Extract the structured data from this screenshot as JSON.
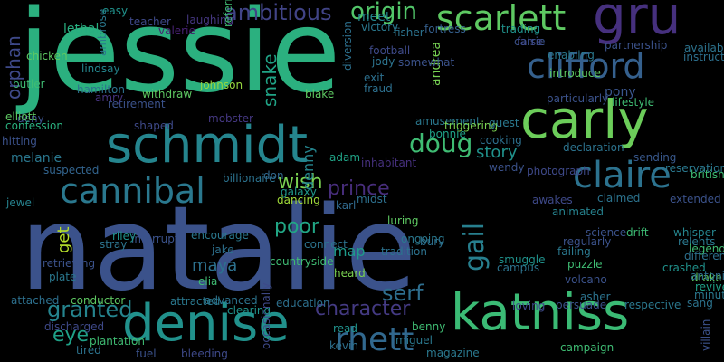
{
  "words": [
    {
      "text": "natalie",
      "color": "#3b528b"
    },
    {
      "text": "jessie",
      "color": "#2bb07f"
    },
    {
      "text": "schmidt",
      "color": "#25858e"
    },
    {
      "text": "gru",
      "color": "#46307e"
    },
    {
      "text": "carly",
      "color": "#6ccd5a"
    },
    {
      "text": "clifford",
      "color": "#35608d"
    },
    {
      "text": "katniss",
      "color": "#3bbb75"
    },
    {
      "text": "denise",
      "color": "#21918c"
    },
    {
      "text": "scarlett",
      "color": "#5ec962"
    },
    {
      "text": "cannibal",
      "color": "#2a788e"
    },
    {
      "text": "claire",
      "color": "#2c728e"
    },
    {
      "text": "doug",
      "color": "#3fbc73"
    },
    {
      "text": "rhett",
      "color": "#31688e"
    },
    {
      "text": "gail",
      "color": "#277f8e"
    },
    {
      "text": "origin",
      "color": "#52c569"
    },
    {
      "text": "ambitious",
      "color": "#414487"
    },
    {
      "text": "orphan",
      "color": "#3e4989"
    },
    {
      "text": "snake",
      "color": "#20a386"
    },
    {
      "text": "granted",
      "color": "#25848e"
    },
    {
      "text": "character",
      "color": "#443a83"
    },
    {
      "text": "prince",
      "color": "#472d7b"
    },
    {
      "text": "poor",
      "color": "#21a685"
    },
    {
      "text": "serf",
      "color": "#2e6e8e"
    },
    {
      "text": "eye",
      "color": "#1fa187"
    },
    {
      "text": "story",
      "color": "#20928c"
    },
    {
      "text": "wish",
      "color": "#7ad151"
    },
    {
      "text": "meet",
      "color": "#24878e"
    },
    {
      "text": "melanie",
      "color": "#2a778e"
    },
    {
      "text": "maya",
      "color": "#2d718e"
    },
    {
      "text": "lethal",
      "color": "#28ae80"
    },
    {
      "text": "denny",
      "color": "#25858e"
    },
    {
      "text": "get",
      "color": "#b5de2b"
    },
    {
      "text": "jewel",
      "color": "#26828e"
    },
    {
      "text": "dancing",
      "color": "#a0da39"
    },
    {
      "text": "map",
      "color": "#1e9b8a"
    },
    {
      "text": "andrea",
      "color": "#77d153"
    },
    {
      "text": "deny",
      "color": "#3b528b"
    },
    {
      "text": "confession",
      "color": "#2ab07f"
    },
    {
      "text": "elliott",
      "color": "#5ec962"
    },
    {
      "text": "hitting",
      "color": "#3b528b"
    },
    {
      "text": "football",
      "color": "#3e4a89"
    },
    {
      "text": "fortress",
      "color": "#355f8d"
    },
    {
      "text": "fisher",
      "color": "#2c738e"
    },
    {
      "text": "trading",
      "color": "#20928c"
    },
    {
      "text": "carrie",
      "color": "#3b528b"
    },
    {
      "text": "pony",
      "color": "#39558c"
    },
    {
      "text": "lifestyle",
      "color": "#3fbc73"
    },
    {
      "text": "particularly",
      "color": "#3b528b"
    },
    {
      "text": "fraud",
      "color": "#2d708e"
    },
    {
      "text": "blake",
      "color": "#5ec962"
    },
    {
      "text": "withdraw",
      "color": "#5ec962"
    },
    {
      "text": "johnson",
      "color": "#95d840"
    },
    {
      "text": "retirement",
      "color": "#3b528b"
    },
    {
      "text": "hamilton",
      "color": "#2c728e"
    },
    {
      "text": "amry",
      "color": "#46337e"
    },
    {
      "text": "lindsay",
      "color": "#24868e"
    },
    {
      "text": "laughing",
      "color": "#453781"
    },
    {
      "text": "valerie",
      "color": "#482173"
    },
    {
      "text": "chicken",
      "color": "#5ec962"
    },
    {
      "text": "suspected",
      "color": "#32648e"
    },
    {
      "text": "mobster",
      "color": "#453882"
    },
    {
      "text": "amusement",
      "color": "#2a788e"
    },
    {
      "text": "triggering",
      "color": "#7ad151"
    },
    {
      "text": "guest",
      "color": "#2a788e"
    },
    {
      "text": "bonnie",
      "color": "#1fa187"
    },
    {
      "text": "cooking",
      "color": "#2d708e"
    },
    {
      "text": "adam",
      "color": "#20a386"
    },
    {
      "text": "karl",
      "color": "#306a8e"
    },
    {
      "text": "midst",
      "color": "#2d708e"
    },
    {
      "text": "galaxy",
      "color": "#1f978b"
    },
    {
      "text": "billionaire",
      "color": "#2c728e"
    },
    {
      "text": "don",
      "color": "#31688e"
    },
    {
      "text": "inhabitant",
      "color": "#46307e"
    },
    {
      "text": "wendy",
      "color": "#3b528b"
    },
    {
      "text": "photograph",
      "color": "#3e4989"
    },
    {
      "text": "declaration",
      "color": "#2c738e"
    },
    {
      "text": "sending",
      "color": "#38588c"
    },
    {
      "text": "british",
      "color": "#3dbc74"
    },
    {
      "text": "reservation",
      "color": "#2a788e"
    },
    {
      "text": "extended",
      "color": "#3b528b"
    },
    {
      "text": "claimed",
      "color": "#2c738e"
    },
    {
      "text": "awakes",
      "color": "#3e4989"
    },
    {
      "text": "animated",
      "color": "#26828e"
    },
    {
      "text": "science",
      "color": "#3b528b"
    },
    {
      "text": "drift",
      "color": "#3dbc74"
    },
    {
      "text": "whisper",
      "color": "#25858e"
    },
    {
      "text": "relents",
      "color": "#2a788e"
    },
    {
      "text": "legendary",
      "color": "#3fbc73"
    },
    {
      "text": "difference",
      "color": "#2d708e"
    },
    {
      "text": "crashed",
      "color": "#20928c"
    },
    {
      "text": "drake",
      "color": "#5ec962"
    },
    {
      "text": "revive",
      "color": "#1fa187"
    },
    {
      "text": "minute",
      "color": "#2a788e"
    },
    {
      "text": "antonio",
      "color": "#2d708e"
    },
    {
      "text": "sang",
      "color": "#2c738e"
    },
    {
      "text": "villain",
      "color": "#3b528b"
    },
    {
      "text": "respective",
      "color": "#2a788e"
    },
    {
      "text": "persuade",
      "color": "#3b528b"
    },
    {
      "text": "asher",
      "color": "#2c738e"
    },
    {
      "text": "campaign",
      "color": "#3fbc73"
    },
    {
      "text": "loving",
      "color": "#3e4989"
    },
    {
      "text": "regularly",
      "color": "#3b528b"
    },
    {
      "text": "failing",
      "color": "#2a788e"
    },
    {
      "text": "puzzle",
      "color": "#3fbc73"
    },
    {
      "text": "volcano",
      "color": "#3b528b"
    },
    {
      "text": "campus",
      "color": "#2c738e"
    },
    {
      "text": "smuggle",
      "color": "#20928c"
    },
    {
      "text": "tradition",
      "color": "#2c728e"
    },
    {
      "text": "ongoing",
      "color": "#2a788e"
    },
    {
      "text": "luring",
      "color": "#5ec962"
    },
    {
      "text": "bury",
      "color": "#2d708e"
    },
    {
      "text": "miguel",
      "color": "#2a788e"
    },
    {
      "text": "benny",
      "color": "#3fbc73"
    },
    {
      "text": "kevin",
      "color": "#2d708e"
    },
    {
      "text": "magazine",
      "color": "#2a788e"
    },
    {
      "text": "read",
      "color": "#20928c"
    },
    {
      "text": "heard",
      "color": "#7ad151"
    },
    {
      "text": "education",
      "color": "#2d708e"
    },
    {
      "text": "countryside",
      "color": "#3fbc73"
    },
    {
      "text": "occasionally",
      "color": "#3e4989"
    },
    {
      "text": "connect",
      "color": "#2c738e"
    },
    {
      "text": "interrupt",
      "color": "#3b528b"
    },
    {
      "text": "encourage",
      "color": "#2a788e"
    },
    {
      "text": "jake",
      "color": "#2d708e"
    },
    {
      "text": "elia",
      "color": "#3fbc73"
    },
    {
      "text": "advanced",
      "color": "#2c738e"
    },
    {
      "text": "attracted",
      "color": "#2a788e"
    },
    {
      "text": "clearing",
      "color": "#20928c"
    },
    {
      "text": "bleeding",
      "color": "#3e4989"
    },
    {
      "text": "fuel",
      "color": "#3b528b"
    },
    {
      "text": "tired",
      "color": "#2c738e"
    },
    {
      "text": "plantation",
      "color": "#3fbc73"
    },
    {
      "text": "discharged",
      "color": "#3e4989"
    },
    {
      "text": "conductor",
      "color": "#5ec962"
    },
    {
      "text": "attached",
      "color": "#2d708e"
    },
    {
      "text": "plate",
      "color": "#2a788e"
    },
    {
      "text": "retrieving",
      "color": "#3b528b"
    },
    {
      "text": "stray",
      "color": "#2c738e"
    },
    {
      "text": "riley",
      "color": "#20928c"
    },
    {
      "text": "shaped",
      "color": "#3e4989"
    },
    {
      "text": "butler",
      "color": "#3fbc73"
    },
    {
      "text": "victory",
      "color": "#2a788e"
    },
    {
      "text": "jody",
      "color": "#2c738e"
    },
    {
      "text": "somewhat",
      "color": "#3b528b"
    },
    {
      "text": "exit",
      "color": "#2d708e"
    },
    {
      "text": "false",
      "color": "#3e4989"
    },
    {
      "text": "introduce",
      "color": "#5ec962"
    },
    {
      "text": "enabling",
      "color": "#2a788e"
    },
    {
      "text": "partnership",
      "color": "#3b528b"
    },
    {
      "text": "available",
      "color": "#2c738e"
    },
    {
      "text": "instructor",
      "color": "#2d708e"
    },
    {
      "text": "easy",
      "color": "#20928c"
    },
    {
      "text": "teacher",
      "color": "#3e4989"
    },
    {
      "text": "ambrose",
      "color": "#2a788e"
    },
    {
      "text": "referred",
      "color": "#3fbc73"
    },
    {
      "text": "diversion",
      "color": "#2d708e"
    }
  ]
}
